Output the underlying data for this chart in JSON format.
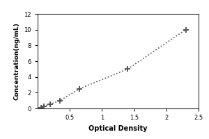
{
  "x_data": [
    0.05,
    0.1,
    0.2,
    0.35,
    0.65,
    1.4,
    2.3
  ],
  "y_data": [
    0.1,
    0.3,
    0.55,
    1.0,
    2.5,
    5.0,
    10.0
  ],
  "xlabel": "Optical Density",
  "ylabel": "Concentration(ng/mL)",
  "xlim": [
    0,
    2.5
  ],
  "ylim": [
    0,
    12
  ],
  "xticks": [
    0.5,
    1.0,
    1.5,
    2.0,
    2.5
  ],
  "yticks": [
    0,
    2,
    4,
    6,
    8,
    10,
    12
  ],
  "line_color": "#555555",
  "marker": "+",
  "marker_size": 6,
  "line_style": "dotted",
  "plot_bg": "#ffffff",
  "fig_bg": "#ffffff",
  "outer_border_color": "#000000",
  "xlabel_fontsize": 7,
  "ylabel_fontsize": 6.5,
  "tick_fontsize": 6
}
